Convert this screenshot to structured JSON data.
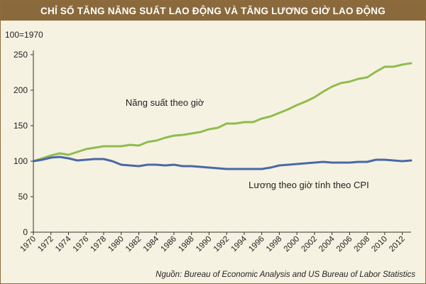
{
  "title": "CHỈ SỐ TĂNG NĂNG SUẤT LAO ĐỘNG VÀ TĂNG LƯƠNG GIỜ LAO ĐỘNG",
  "source_note": "Nguồn: Bureau of Economic Analysis and US Bureau of Labor Statistics",
  "colors": {
    "title_bar": "#8a6a3c",
    "panel_bg": "#f6f2e1",
    "productivity_line": "#8fbc4f",
    "wage_line": "#4a68a8"
  },
  "chart_data": {
    "type": "line",
    "y_unit_label": "100=1970",
    "ylim": [
      0,
      250
    ],
    "yticks": [
      0,
      50,
      100,
      150,
      200,
      250
    ],
    "xlim": [
      1970,
      2013
    ],
    "xticks": [
      1970,
      1972,
      1974,
      1976,
      1978,
      1980,
      1982,
      1984,
      1986,
      1988,
      1990,
      1992,
      1994,
      1996,
      1998,
      2000,
      2002,
      2004,
      2006,
      2008,
      2010,
      2012
    ],
    "grid": false,
    "series": [
      {
        "name": "Năng suất theo giờ",
        "color": "#8fbc4f",
        "x": [
          1970,
          1971,
          1972,
          1973,
          1974,
          1975,
          1976,
          1977,
          1978,
          1979,
          1980,
          1981,
          1982,
          1983,
          1984,
          1985,
          1986,
          1987,
          1988,
          1989,
          1990,
          1991,
          1992,
          1993,
          1994,
          1995,
          1996,
          1997,
          1998,
          1999,
          2000,
          2001,
          2002,
          2003,
          2004,
          2005,
          2006,
          2007,
          2008,
          2009,
          2010,
          2011,
          2012,
          2013
        ],
        "values": [
          100,
          104,
          108,
          111,
          109,
          113,
          117,
          119,
          121,
          121,
          121,
          123,
          122,
          127,
          129,
          133,
          136,
          137,
          139,
          141,
          145,
          147,
          153,
          153,
          155,
          155,
          160,
          163,
          168,
          173,
          179,
          184,
          190,
          198,
          205,
          210,
          212,
          216,
          218,
          226,
          233,
          233,
          236,
          238
        ]
      },
      {
        "name": "Lương theo giờ tính theo CPI",
        "color": "#4a68a8",
        "x": [
          1970,
          1971,
          1972,
          1973,
          1974,
          1975,
          1976,
          1977,
          1978,
          1979,
          1980,
          1981,
          1982,
          1983,
          1984,
          1985,
          1986,
          1987,
          1988,
          1989,
          1990,
          1991,
          1992,
          1993,
          1994,
          1995,
          1996,
          1997,
          1998,
          1999,
          2000,
          2001,
          2002,
          2003,
          2004,
          2005,
          2006,
          2007,
          2008,
          2009,
          2010,
          2011,
          2012,
          2013
        ],
        "values": [
          100,
          102,
          105,
          106,
          104,
          101,
          102,
          103,
          103,
          100,
          95,
          94,
          93,
          95,
          95,
          94,
          95,
          93,
          93,
          92,
          91,
          90,
          89,
          89,
          89,
          89,
          89,
          91,
          94,
          95,
          96,
          97,
          98,
          99,
          98,
          98,
          98,
          99,
          99,
          102,
          102,
          101,
          100,
          101
        ]
      }
    ],
    "annotations": [
      {
        "text": "Năng suất theo giờ",
        "series": 0
      },
      {
        "text": "Lương theo giờ tính theo CPI",
        "series": 1
      }
    ]
  }
}
